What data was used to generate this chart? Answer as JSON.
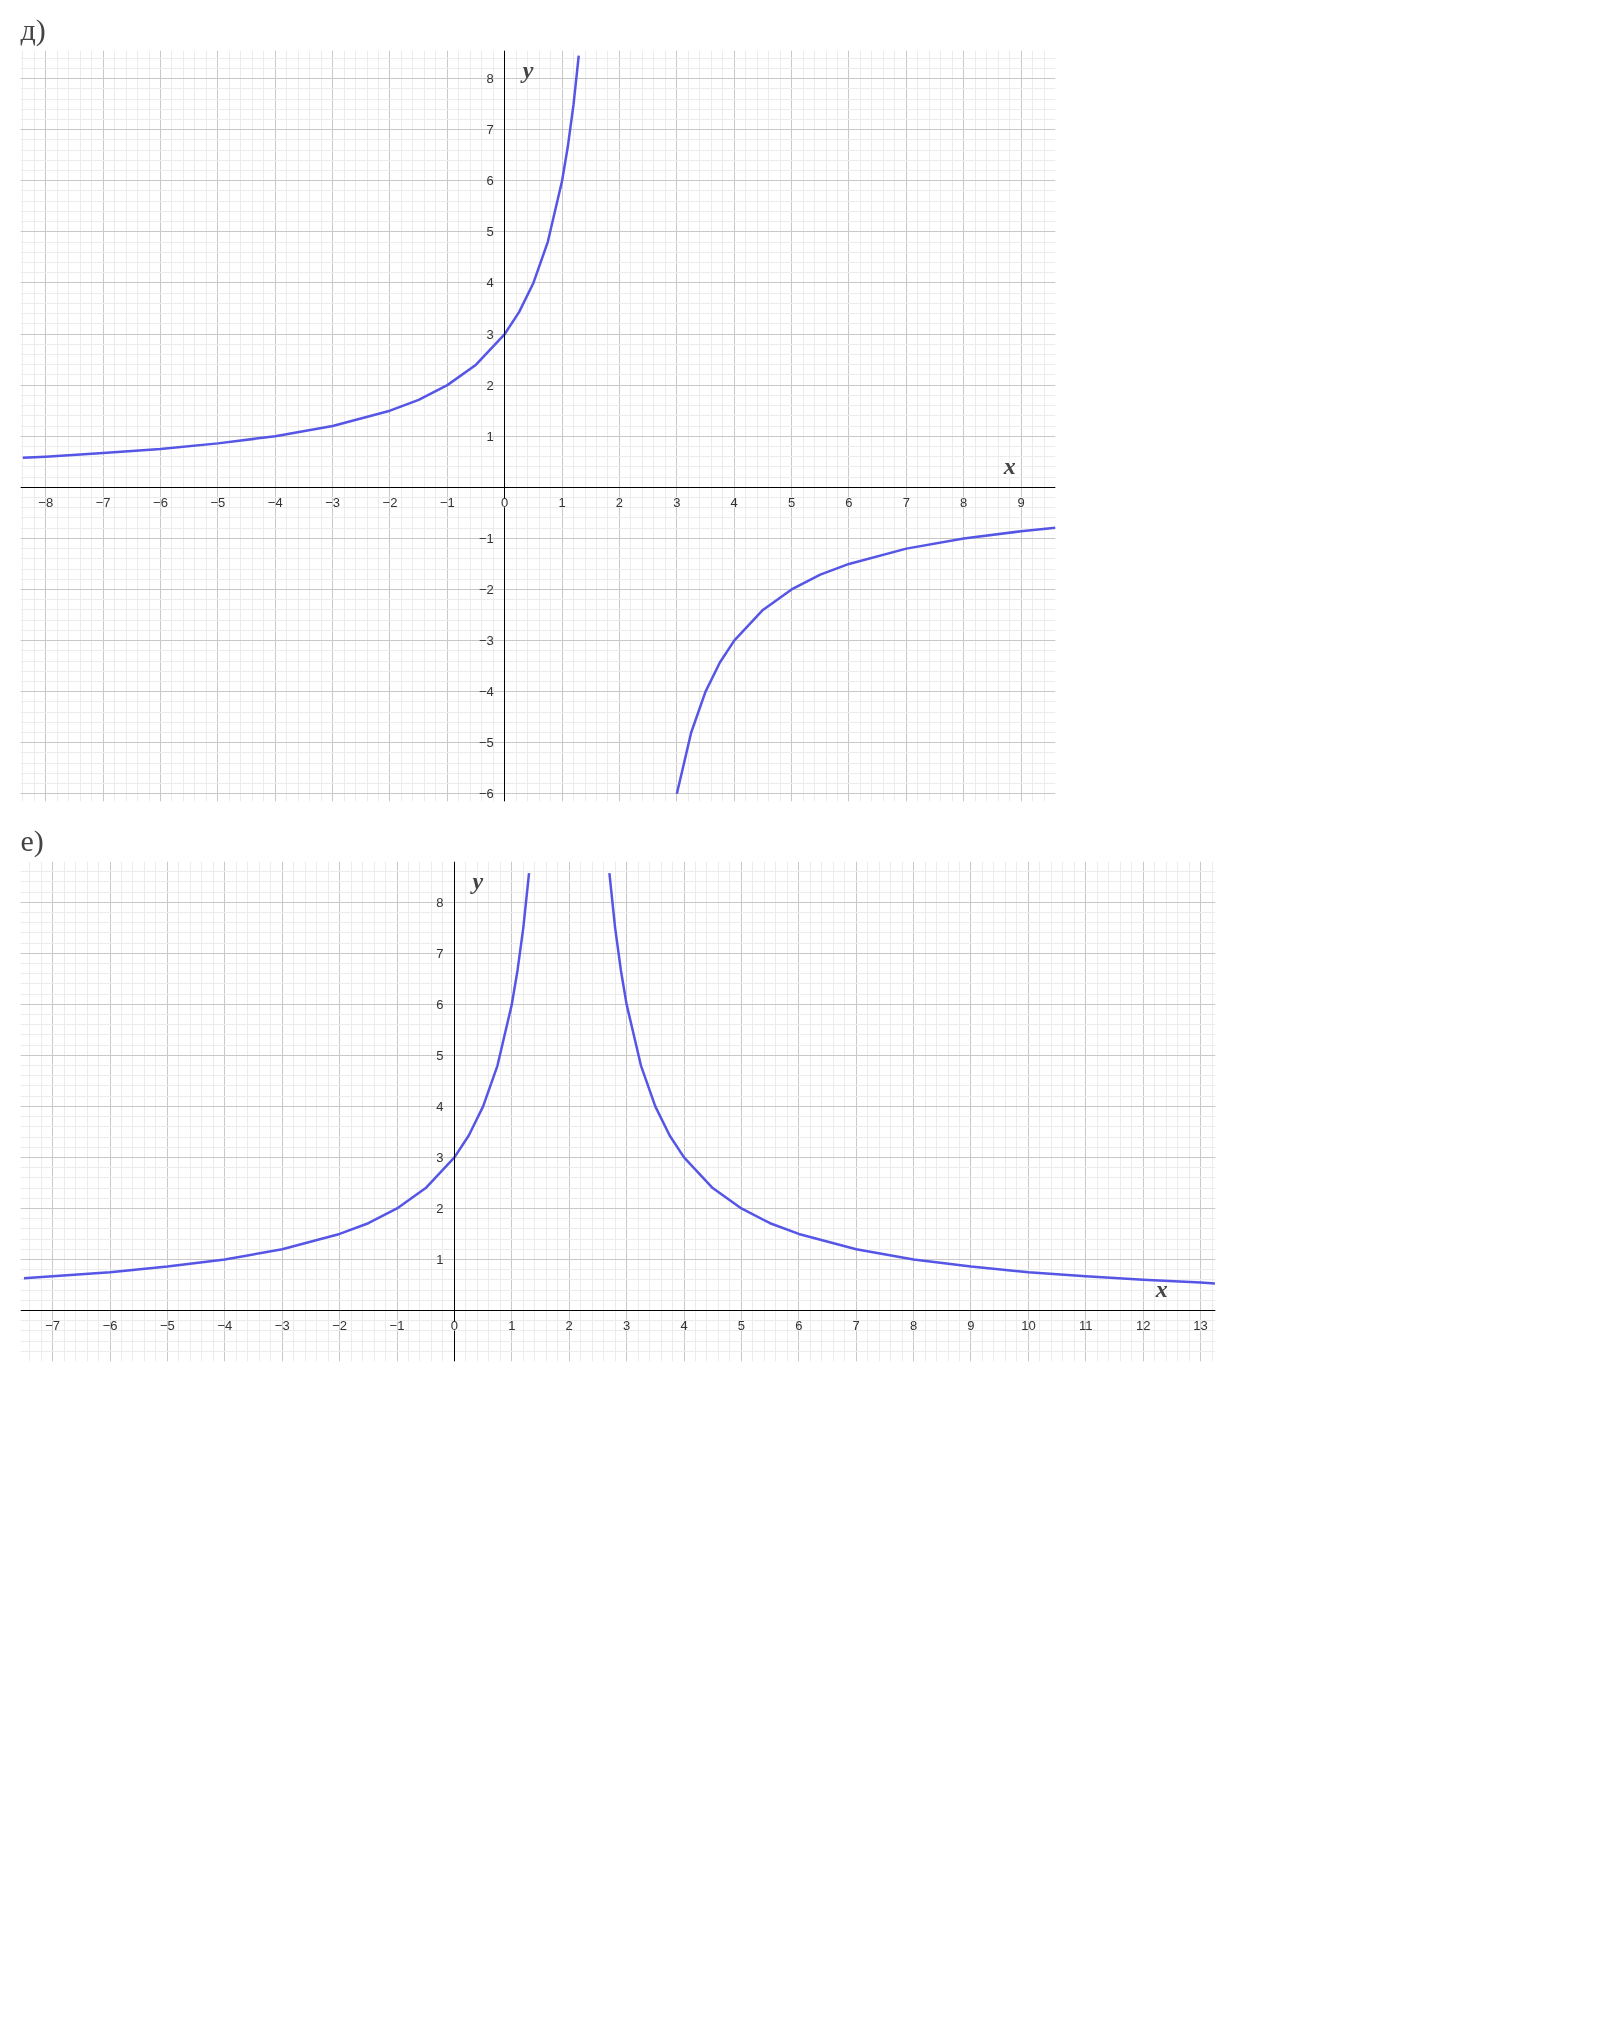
{
  "chart_data": [
    {
      "type": "line",
      "title": "д)",
      "xlabel": "x",
      "ylabel": "y",
      "xlim": [
        -8.44,
        9.6
      ],
      "ylim": [
        -6.15,
        8.55
      ],
      "xticks": [
        {
          "value": -8,
          "label": "−8"
        },
        {
          "value": -7,
          "label": "−7"
        },
        {
          "value": -6,
          "label": "−6"
        },
        {
          "value": -5,
          "label": "−5"
        },
        {
          "value": -4,
          "label": "−4"
        },
        {
          "value": -3,
          "label": "−3"
        },
        {
          "value": -2,
          "label": "−2"
        },
        {
          "value": -1,
          "label": "−1"
        },
        0,
        1,
        2,
        3,
        4,
        5,
        6,
        7,
        8,
        9
      ],
      "yticks": [
        {
          "value": -6,
          "label": "−6"
        },
        {
          "value": -5,
          "label": "−5"
        },
        {
          "value": -4,
          "label": "−4"
        },
        {
          "value": -3,
          "label": "−3"
        },
        {
          "value": -2,
          "label": "−2"
        },
        {
          "value": -1,
          "label": "−1"
        },
        1,
        2,
        3,
        4,
        5,
        6,
        7,
        8
      ],
      "grid": true,
      "series": [
        {
          "color": "#5555e6",
          "x": [
            -8.4,
            -8,
            -7,
            -6,
            -5,
            -4,
            -3,
            -2,
            -1.5,
            -1,
            -0.5,
            0,
            0.25,
            0.5,
            0.75,
            1,
            1.1,
            1.2,
            1.29
          ],
          "values": [
            0.58,
            0.6,
            0.67,
            0.75,
            0.86,
            1,
            1.2,
            1.5,
            1.71,
            2,
            2.4,
            3,
            3.43,
            4,
            4.8,
            6,
            6.67,
            7.5,
            8.45
          ]
        },
        {
          "color": "#5555e6",
          "x": [
            3,
            3.25,
            3.5,
            3.75,
            4,
            4.5,
            5,
            5.5,
            6,
            7,
            8,
            9,
            9.6
          ],
          "values": [
            -6,
            -4.8,
            -4,
            -3.43,
            -3,
            -2.4,
            -2,
            -1.71,
            -1.5,
            -1.2,
            -1,
            -0.86,
            -0.79
          ]
        }
      ]
    },
    {
      "type": "line",
      "title": "е)",
      "xlabel": "x",
      "ylabel": "y",
      "xlim": [
        -7.56,
        13.26
      ],
      "ylim": [
        -1.0,
        8.8
      ],
      "xticks": [
        {
          "value": -7,
          "label": "−7"
        },
        {
          "value": -6,
          "label": "−6"
        },
        {
          "value": -5,
          "label": "−5"
        },
        {
          "value": -4,
          "label": "−4"
        },
        {
          "value": -3,
          "label": "−3"
        },
        {
          "value": -2,
          "label": "−2"
        },
        {
          "value": -1,
          "label": "−1"
        },
        0,
        1,
        2,
        3,
        4,
        5,
        6,
        7,
        8,
        9,
        10,
        11,
        12,
        13
      ],
      "yticks": [
        1,
        2,
        3,
        4,
        5,
        6,
        7,
        8
      ],
      "grid": true,
      "series": [
        {
          "color": "#5555e6",
          "x": [
            -7.5,
            -7,
            -6,
            -5,
            -4,
            -3,
            -2,
            -1.5,
            -1,
            -0.5,
            0,
            0.25,
            0.5,
            0.75,
            1,
            1.1,
            1.2,
            1.3
          ],
          "values": [
            0.63,
            0.67,
            0.75,
            0.86,
            1,
            1.2,
            1.5,
            1.71,
            2,
            2.4,
            3,
            3.43,
            4,
            4.8,
            6,
            6.67,
            7.5,
            8.57
          ]
        },
        {
          "color": "#5555e6",
          "x": [
            2.7,
            2.8,
            2.9,
            3,
            3.25,
            3.5,
            3.75,
            4,
            4.5,
            5,
            5.5,
            6,
            7,
            8,
            9,
            10,
            11,
            12,
            13,
            13.25
          ],
          "values": [
            8.57,
            7.5,
            6.67,
            6,
            4.8,
            4,
            3.43,
            3,
            2.4,
            2,
            1.71,
            1.5,
            1.2,
            1,
            0.86,
            0.75,
            0.67,
            0.6,
            0.55,
            0.53
          ]
        }
      ]
    }
  ]
}
